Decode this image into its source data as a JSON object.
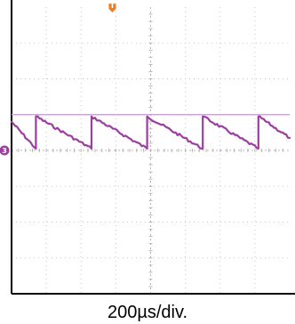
{
  "chart_data": {
    "type": "line",
    "title": "",
    "xlabel": "200µs/div.",
    "ylabel": "",
    "x_unit": "µs",
    "x_per_div_us": 200,
    "x_divisions": 8,
    "y_divisions": 8,
    "xlim": [
      0,
      1600
    ],
    "ylim": [
      -4,
      4
    ],
    "grid": true,
    "series": [
      {
        "color": "#9b3ea0",
        "waveform": "sawtooth",
        "period_us": 320,
        "high_div": 1.0,
        "low_div": 0.0,
        "x": [
          0,
          140,
          140,
          460,
          460,
          780,
          780,
          1100,
          1100,
          1420,
          1420,
          1600
        ],
        "y": [
          0.8,
          0.05,
          0.95,
          0.05,
          0.95,
          0.05,
          0.95,
          0.05,
          0.95,
          0.05,
          0.95,
          0.35
        ]
      }
    ],
    "cursor_lines": [
      {
        "y_div": 1.0,
        "color": "#c9a6d6"
      }
    ],
    "markers": [
      {
        "id": "trigger",
        "glyph": "T",
        "color": "#f07d21",
        "x_us": 580
      },
      {
        "id": "channel",
        "glyph": "3",
        "color": "#9b3ea0",
        "y_div": 0.0
      }
    ]
  }
}
